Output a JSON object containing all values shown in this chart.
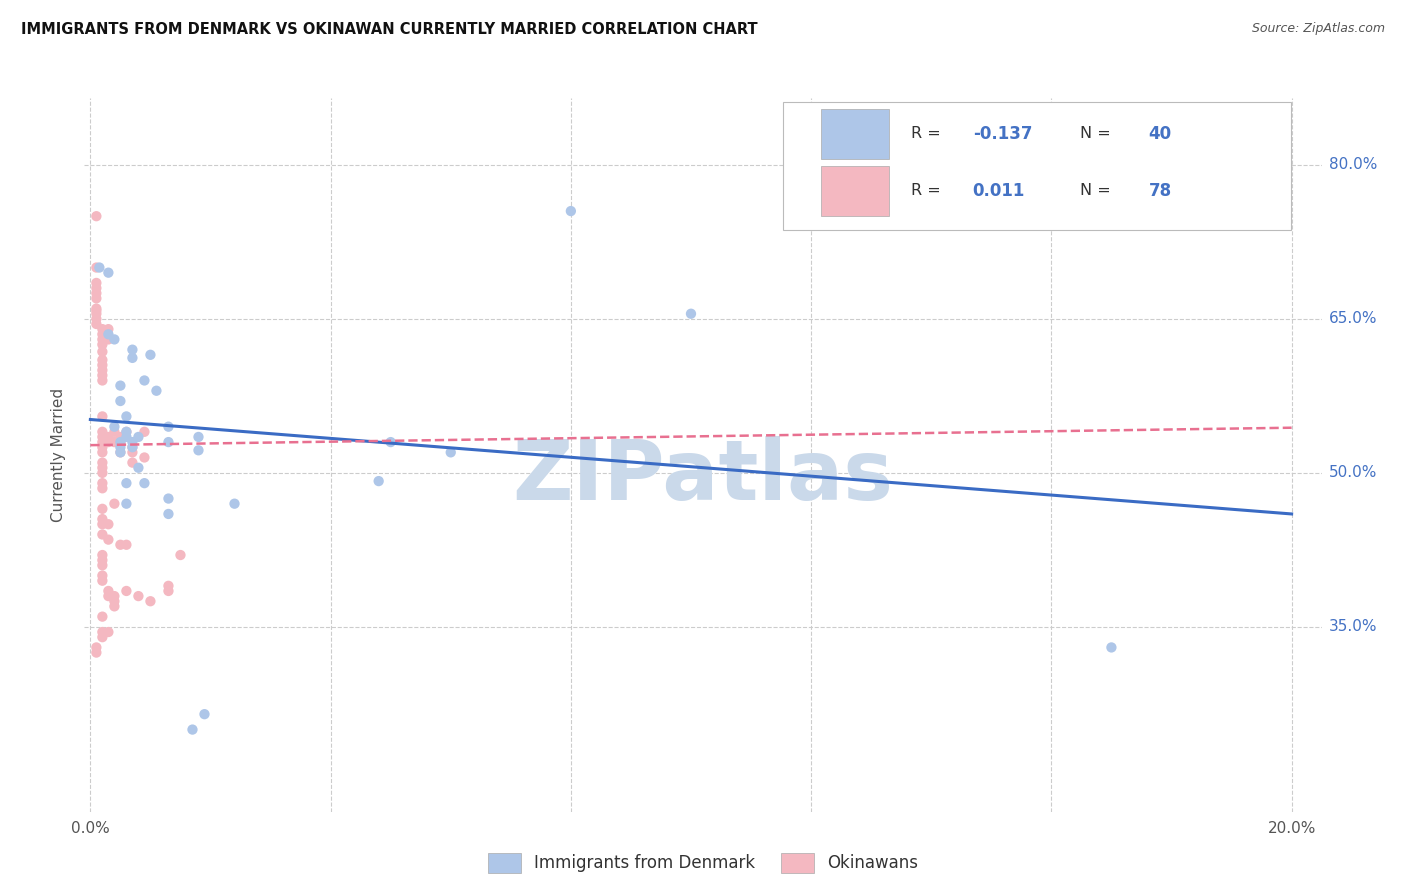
{
  "title": "IMMIGRANTS FROM DENMARK VS OKINAWAN CURRENTLY MARRIED CORRELATION CHART",
  "source": "Source: ZipAtlas.com",
  "ylabel": "Currently Married",
  "y_ticks": [
    0.35,
    0.5,
    0.65,
    0.8
  ],
  "y_tick_labels": [
    "35.0%",
    "50.0%",
    "65.0%",
    "80.0%"
  ],
  "x_lim": [
    -0.001,
    0.205
  ],
  "y_lim": [
    0.17,
    0.865
  ],
  "blue_scatter": [
    [
      0.0015,
      0.7
    ],
    [
      0.003,
      0.695
    ],
    [
      0.003,
      0.635
    ],
    [
      0.004,
      0.63
    ],
    [
      0.004,
      0.545
    ],
    [
      0.005,
      0.585
    ],
    [
      0.005,
      0.57
    ],
    [
      0.005,
      0.53
    ],
    [
      0.005,
      0.525
    ],
    [
      0.005,
      0.52
    ],
    [
      0.006,
      0.555
    ],
    [
      0.006,
      0.54
    ],
    [
      0.006,
      0.535
    ],
    [
      0.006,
      0.49
    ],
    [
      0.006,
      0.47
    ],
    [
      0.007,
      0.62
    ],
    [
      0.007,
      0.612
    ],
    [
      0.007,
      0.53
    ],
    [
      0.007,
      0.525
    ],
    [
      0.008,
      0.535
    ],
    [
      0.008,
      0.505
    ],
    [
      0.009,
      0.59
    ],
    [
      0.009,
      0.49
    ],
    [
      0.01,
      0.615
    ],
    [
      0.011,
      0.58
    ],
    [
      0.013,
      0.545
    ],
    [
      0.013,
      0.53
    ],
    [
      0.013,
      0.475
    ],
    [
      0.013,
      0.46
    ],
    [
      0.018,
      0.535
    ],
    [
      0.018,
      0.522
    ],
    [
      0.05,
      0.53
    ],
    [
      0.06,
      0.52
    ],
    [
      0.08,
      0.755
    ],
    [
      0.017,
      0.25
    ],
    [
      0.019,
      0.265
    ],
    [
      0.17,
      0.33
    ],
    [
      0.1,
      0.655
    ],
    [
      0.048,
      0.492
    ],
    [
      0.024,
      0.47
    ]
  ],
  "pink_scatter": [
    [
      0.001,
      0.75
    ],
    [
      0.001,
      0.7
    ],
    [
      0.001,
      0.685
    ],
    [
      0.001,
      0.68
    ],
    [
      0.001,
      0.675
    ],
    [
      0.001,
      0.67
    ],
    [
      0.001,
      0.66
    ],
    [
      0.001,
      0.658
    ],
    [
      0.001,
      0.655
    ],
    [
      0.001,
      0.65
    ],
    [
      0.001,
      0.645
    ],
    [
      0.002,
      0.64
    ],
    [
      0.002,
      0.635
    ],
    [
      0.002,
      0.63
    ],
    [
      0.002,
      0.625
    ],
    [
      0.002,
      0.618
    ],
    [
      0.002,
      0.61
    ],
    [
      0.002,
      0.605
    ],
    [
      0.002,
      0.6
    ],
    [
      0.002,
      0.595
    ],
    [
      0.002,
      0.59
    ],
    [
      0.002,
      0.54
    ],
    [
      0.002,
      0.535
    ],
    [
      0.002,
      0.53
    ],
    [
      0.002,
      0.525
    ],
    [
      0.002,
      0.52
    ],
    [
      0.002,
      0.51
    ],
    [
      0.002,
      0.505
    ],
    [
      0.002,
      0.5
    ],
    [
      0.002,
      0.49
    ],
    [
      0.002,
      0.455
    ],
    [
      0.002,
      0.45
    ],
    [
      0.002,
      0.42
    ],
    [
      0.002,
      0.415
    ],
    [
      0.002,
      0.41
    ],
    [
      0.002,
      0.395
    ],
    [
      0.002,
      0.36
    ],
    [
      0.002,
      0.345
    ],
    [
      0.003,
      0.64
    ],
    [
      0.003,
      0.535
    ],
    [
      0.003,
      0.53
    ],
    [
      0.003,
      0.435
    ],
    [
      0.003,
      0.385
    ],
    [
      0.003,
      0.38
    ],
    [
      0.003,
      0.345
    ],
    [
      0.004,
      0.54
    ],
    [
      0.004,
      0.53
    ],
    [
      0.004,
      0.47
    ],
    [
      0.004,
      0.38
    ],
    [
      0.004,
      0.375
    ],
    [
      0.005,
      0.535
    ],
    [
      0.005,
      0.53
    ],
    [
      0.005,
      0.43
    ],
    [
      0.006,
      0.54
    ],
    [
      0.006,
      0.43
    ],
    [
      0.007,
      0.525
    ],
    [
      0.007,
      0.52
    ],
    [
      0.008,
      0.38
    ],
    [
      0.009,
      0.54
    ],
    [
      0.01,
      0.375
    ],
    [
      0.013,
      0.39
    ],
    [
      0.013,
      0.385
    ],
    [
      0.015,
      0.42
    ],
    [
      0.001,
      0.33
    ],
    [
      0.001,
      0.325
    ],
    [
      0.002,
      0.485
    ],
    [
      0.002,
      0.4
    ],
    [
      0.004,
      0.37
    ],
    [
      0.002,
      0.34
    ],
    [
      0.003,
      0.63
    ],
    [
      0.006,
      0.385
    ],
    [
      0.005,
      0.52
    ],
    [
      0.002,
      0.555
    ],
    [
      0.002,
      0.465
    ],
    [
      0.002,
      0.44
    ],
    [
      0.003,
      0.45
    ],
    [
      0.007,
      0.51
    ],
    [
      0.009,
      0.515
    ]
  ],
  "blue_line_x": [
    0.0,
    0.2
  ],
  "blue_line_y": [
    0.552,
    0.46
  ],
  "pink_line_x": [
    0.0,
    0.2
  ],
  "pink_line_y": [
    0.527,
    0.544
  ],
  "scatter_size": 55,
  "blue_color": "#aec6e8",
  "pink_color": "#f4b8c1",
  "blue_line_color": "#3a6bc4",
  "pink_line_color": "#e87090",
  "grid_color": "#cccccc",
  "background_color": "#ffffff",
  "watermark": "ZIPatlas",
  "watermark_color": "#cad9ea",
  "watermark_fontsize": 60,
  "r_n_color": "#4472c4",
  "label_color": "#333333",
  "tick_color_right": "#4472c4",
  "tick_color_bottom": "#555555",
  "ylabel_color": "#555555",
  "legend_blue_r": "-0.137",
  "legend_blue_n": "40",
  "legend_pink_r": "0.011",
  "legend_pink_n": "78"
}
